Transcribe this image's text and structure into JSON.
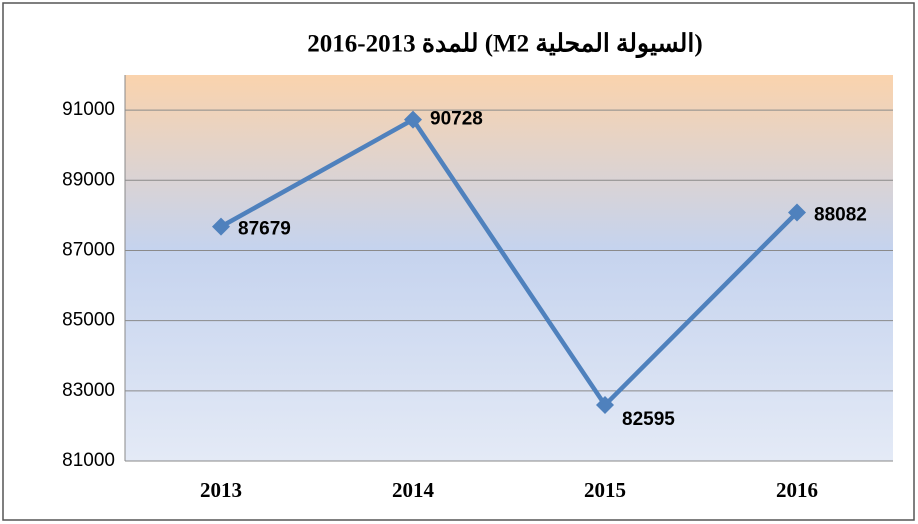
{
  "chart_data": {
    "type": "line",
    "title": "(السيولة المحلية M2) للمدة 2013-2016",
    "categories": [
      "2013",
      "2014",
      "2015",
      "2016"
    ],
    "values": [
      87679,
      90728,
      82595,
      88082
    ],
    "color": "#4f81bd",
    "ylim": [
      81000,
      92000
    ],
    "yticks": [
      81000,
      83000,
      85000,
      87000,
      89000,
      91000
    ],
    "grid": true
  }
}
